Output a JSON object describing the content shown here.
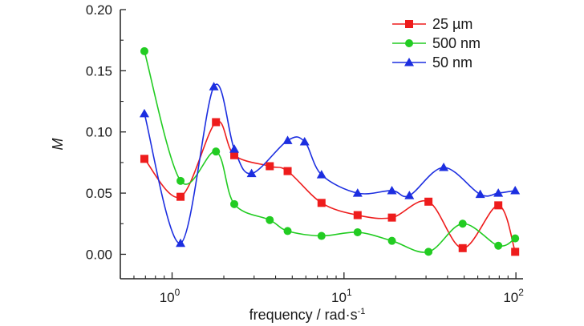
{
  "chart_data": {
    "type": "line",
    "title": "",
    "xlabel": "frequency / rad·s",
    "xlabel_superscript": "-1",
    "ylabel": "M",
    "x_scale": "log",
    "xlim": [
      0.5,
      110
    ],
    "ylim": [
      -0.02,
      0.2
    ],
    "x_ticks": [
      {
        "value": 1,
        "base": "10",
        "exp": "0"
      },
      {
        "value": 10,
        "base": "10",
        "exp": "1"
      },
      {
        "value": 100,
        "base": "10",
        "exp": "2"
      }
    ],
    "y_ticks": [
      {
        "value": 0.0,
        "label": "0.00"
      },
      {
        "value": 0.05,
        "label": "0.05"
      },
      {
        "value": 0.1,
        "label": "0.10"
      },
      {
        "value": 0.15,
        "label": "0.15"
      },
      {
        "value": 0.2,
        "label": "0.20"
      }
    ],
    "grid": false,
    "legend_position": "top-right",
    "series": [
      {
        "name": "25 µm",
        "color": "#ee1c1c",
        "marker": "square",
        "points": [
          [
            0.69,
            0.078
          ],
          [
            1.12,
            0.047
          ],
          [
            1.8,
            0.108
          ],
          [
            2.3,
            0.081
          ],
          [
            3.7,
            0.072
          ],
          [
            4.7,
            0.068
          ],
          [
            7.4,
            0.042
          ],
          [
            12,
            0.032
          ],
          [
            19,
            0.03
          ],
          [
            31,
            0.043
          ],
          [
            49,
            0.005
          ],
          [
            79,
            0.04
          ],
          [
            99,
            0.002
          ]
        ]
      },
      {
        "name": "500 nm",
        "color": "#22cc22",
        "marker": "circle",
        "points": [
          [
            0.69,
            0.166
          ],
          [
            1.12,
            0.06
          ],
          [
            1.8,
            0.084
          ],
          [
            2.3,
            0.041
          ],
          [
            3.7,
            0.028
          ],
          [
            4.7,
            0.019
          ],
          [
            7.4,
            0.015
          ],
          [
            12,
            0.018
          ],
          [
            19,
            0.011
          ],
          [
            31,
            0.002
          ],
          [
            49,
            0.025
          ],
          [
            79,
            0.007
          ],
          [
            99,
            0.013
          ]
        ]
      },
      {
        "name": "50 nm",
        "color": "#1c2ee0",
        "marker": "triangle",
        "points": [
          [
            0.69,
            0.115
          ],
          [
            1.12,
            0.009
          ],
          [
            1.75,
            0.137
          ],
          [
            2.3,
            0.086
          ],
          [
            2.9,
            0.066
          ],
          [
            4.7,
            0.093
          ],
          [
            5.9,
            0.092
          ],
          [
            7.4,
            0.065
          ],
          [
            12,
            0.05
          ],
          [
            19,
            0.052
          ],
          [
            24,
            0.048
          ],
          [
            38,
            0.071
          ],
          [
            62,
            0.049
          ],
          [
            79,
            0.05
          ],
          [
            99,
            0.052
          ]
        ]
      }
    ]
  }
}
